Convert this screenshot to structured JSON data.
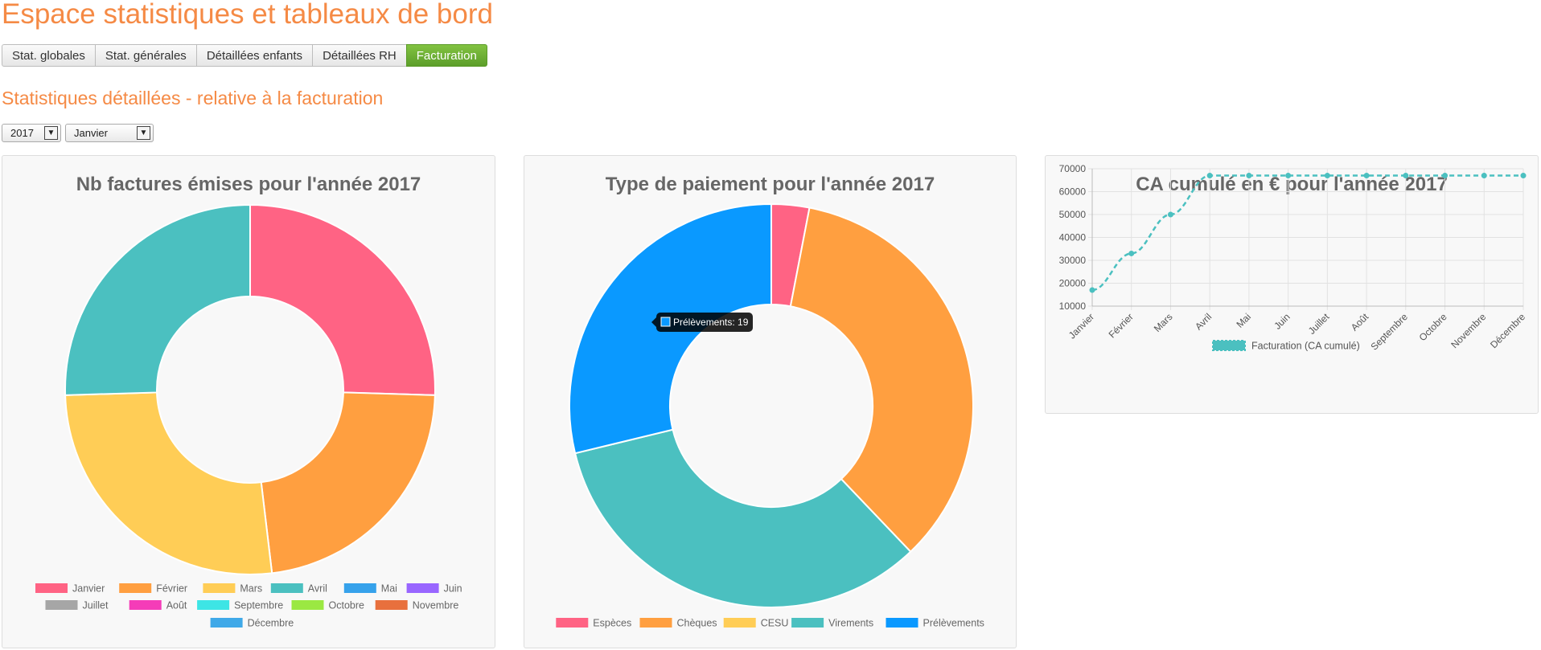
{
  "page": {
    "title": "Espace statistiques et tableaux de bord",
    "subtitle": "Statistiques détaillées - relative à la facturation"
  },
  "tabs": [
    {
      "label": "Stat. globales",
      "active": false
    },
    {
      "label": "Stat. générales",
      "active": false
    },
    {
      "label": "Détaillées enfants",
      "active": false
    },
    {
      "label": "Détaillées RH",
      "active": false
    },
    {
      "label": "Facturation",
      "active": true
    }
  ],
  "filters": {
    "year": "2017",
    "month": "Janvier"
  },
  "colors": {
    "accent_title": "#f58a45",
    "tab_active": "#6aaf35",
    "palette": [
      "#ff6384",
      "#ff9f40",
      "#ffcd56",
      "#4bc0c0",
      "#36a2eb",
      "#9966ff",
      "#a6a6a6",
      "#f53cb8",
      "#3de5e5",
      "#9be842",
      "#e8703d",
      "#3fa9e8"
    ]
  },
  "chart_data": [
    {
      "type": "doughnut",
      "title": "Nb factures émises pour l'année 2017",
      "categories": [
        "Janvier",
        "Février",
        "Mars",
        "Avril",
        "Mai",
        "Juin",
        "Juillet",
        "Août",
        "Septembre",
        "Octobre",
        "Novembre",
        "Décembre"
      ],
      "values": [
        27,
        24,
        28,
        27,
        0,
        0,
        0,
        0,
        0,
        0,
        0,
        0
      ],
      "colors": [
        "#ff6384",
        "#ff9f40",
        "#ffcd56",
        "#4bc0c0",
        "#36a2eb",
        "#9966ff",
        "#a6a6a6",
        "#f53cb8",
        "#3de5e5",
        "#9be842",
        "#e8703d",
        "#3fa9e8"
      ],
      "legend_position": "bottom"
    },
    {
      "type": "doughnut",
      "title": "Type de paiement pour l'année 2017",
      "categories": [
        "Espèces",
        "Chèques",
        "CESU",
        "Virements",
        "Prélèvements"
      ],
      "values": [
        2,
        23,
        0,
        22,
        19
      ],
      "colors": [
        "#ff6384",
        "#ff9f40",
        "#ffcd56",
        "#4bc0c0",
        "#0a99ff"
      ],
      "legend_position": "bottom",
      "tooltip": {
        "label": "Prélèvements: 19",
        "series_index": 4
      }
    },
    {
      "type": "line",
      "title": "CA cumulé en € pour l'année 2017",
      "categories": [
        "Janvier",
        "Février",
        "Mars",
        "Avril",
        "Mai",
        "Juin",
        "Juillet",
        "Août",
        "Septembre",
        "Octobre",
        "Novembre",
        "Décembre"
      ],
      "series": [
        {
          "name": "Facturation (CA cumulé)",
          "values": [
            17000,
            33000,
            50000,
            67000,
            67000,
            67000,
            67000,
            67000,
            67000,
            67000,
            67000,
            67000
          ],
          "color": "#4bc0c0",
          "dashed": true
        }
      ],
      "ylim": [
        10000,
        70000
      ],
      "yticks": [
        10000,
        20000,
        30000,
        40000,
        50000,
        60000,
        70000
      ],
      "grid": true,
      "legend_position": "bottom"
    }
  ]
}
